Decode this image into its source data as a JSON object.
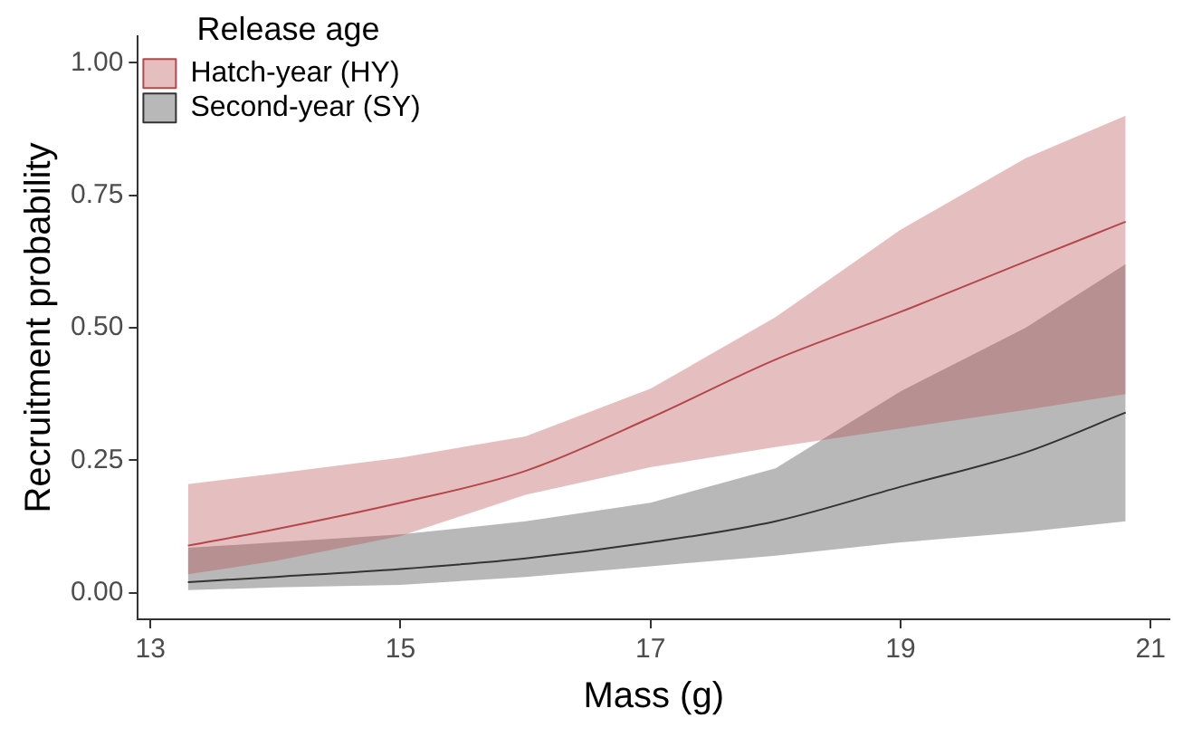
{
  "chart_data": {
    "type": "line",
    "xlabel": "Mass (g)",
    "ylabel": "Recruitment probability",
    "legend_title": "Release age",
    "legend": "top left",
    "grid": false,
    "marker": "none",
    "line_style": "solid",
    "xlim": [
      12.9,
      21.15
    ],
    "xticks": [
      13,
      15,
      17,
      19,
      21
    ],
    "ylim": [
      -0.05,
      1.05
    ],
    "yticks": [
      {
        "value": 0,
        "label": "0.00"
      },
      {
        "value": 0.25,
        "label": "0.25"
      },
      {
        "value": 0.5,
        "label": "0.50"
      },
      {
        "value": 0.75,
        "label": "0.75"
      },
      {
        "value": 1,
        "label": "1.00"
      }
    ],
    "series": [
      {
        "name": "Hatch-year (HY)",
        "color": "#b5474b",
        "x": [
          13.3,
          14,
          15,
          16,
          17,
          18,
          19,
          20,
          20.8
        ],
        "values": [
          0.089,
          0.12,
          0.17,
          0.23,
          0.33,
          0.44,
          0.53,
          0.625,
          0.7
        ],
        "lower": [
          0.035,
          0.06,
          0.107,
          0.185,
          0.237,
          0.275,
          0.31,
          0.345,
          0.375
        ],
        "upper": [
          0.205,
          0.225,
          0.255,
          0.295,
          0.385,
          0.52,
          0.685,
          0.82,
          0.9
        ]
      },
      {
        "name": "Second-year (SY)",
        "color": "#333333",
        "x": [
          13.3,
          14,
          15,
          16,
          17,
          18,
          19,
          20,
          20.8
        ],
        "values": [
          0.02,
          0.03,
          0.045,
          0.065,
          0.095,
          0.135,
          0.2,
          0.265,
          0.34
        ],
        "lower": [
          0.005,
          0.01,
          0.015,
          0.03,
          0.05,
          0.07,
          0.095,
          0.115,
          0.135
        ],
        "upper": [
          0.085,
          0.095,
          0.11,
          0.135,
          0.17,
          0.235,
          0.38,
          0.5,
          0.62
        ]
      }
    ]
  }
}
